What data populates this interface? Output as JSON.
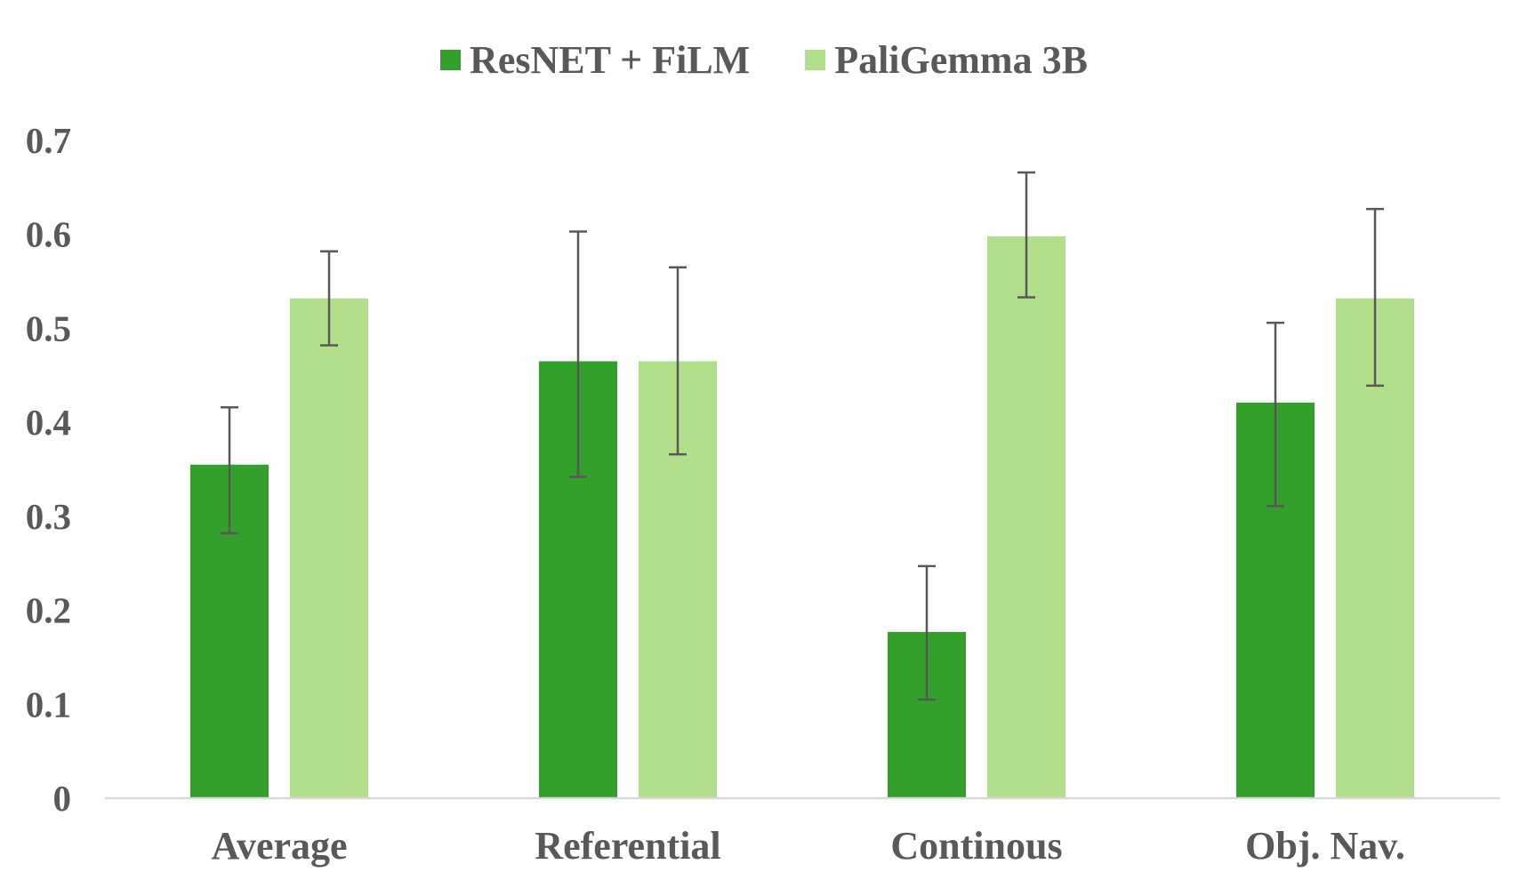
{
  "chart_data": {
    "type": "bar",
    "title": "",
    "xlabel": "",
    "ylabel": "",
    "categories": [
      "Average",
      "Referential",
      "Continous",
      "Obj. Nav."
    ],
    "series": [
      {
        "name": "ResNET + FiLM",
        "color": "#33a02c",
        "values": [
          0.355,
          0.465,
          0.177,
          0.421
        ],
        "error_low": [
          0.282,
          0.342,
          0.105,
          0.311
        ],
        "error_high": [
          0.416,
          0.603,
          0.247,
          0.506
        ]
      },
      {
        "name": "PaliGemma 3B",
        "color": "#b2df8a",
        "values": [
          0.532,
          0.465,
          0.598,
          0.532
        ],
        "error_low": [
          0.482,
          0.366,
          0.533,
          0.439
        ],
        "error_high": [
          0.582,
          0.565,
          0.666,
          0.627
        ]
      }
    ],
    "ylim": [
      0,
      0.7
    ],
    "yticks": [
      "0",
      "0.1",
      "0.2",
      "0.3",
      "0.4",
      "0.5",
      "0.6",
      "0.7"
    ],
    "grid": false,
    "legend_position": "top-center",
    "axis_color": "#d9d9d9",
    "text_color": "#595959",
    "errorbar_color": "#595959"
  }
}
